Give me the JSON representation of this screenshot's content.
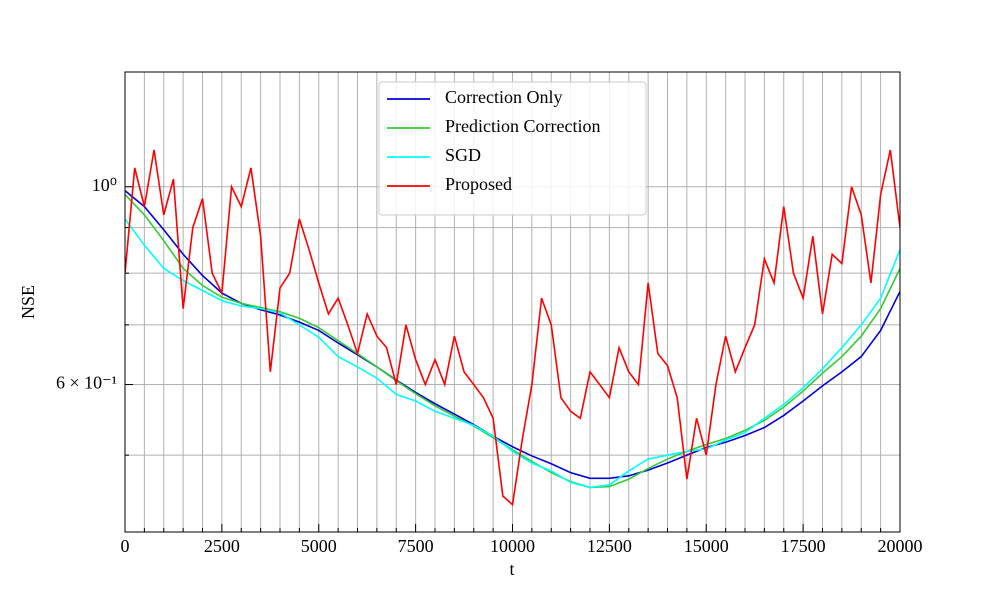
{
  "chart_data": {
    "type": "line",
    "xlabel": "t",
    "ylabel": "NSE",
    "log_y": true,
    "grid": true,
    "legend": "upper center",
    "xlim": [
      0,
      20000
    ],
    "ylim": [
      0.41,
      1.345
    ],
    "xticks": [
      0,
      2500,
      5000,
      7500,
      10000,
      12500,
      15000,
      17500,
      20000
    ],
    "xminorticks": [
      500,
      1000,
      1500,
      2000,
      3000,
      3500,
      4000,
      4500,
      5500,
      6000,
      6500,
      7000,
      8000,
      8500,
      9000,
      9500,
      10500,
      11000,
      11500,
      12000,
      13000,
      13500,
      14000,
      14500,
      15500,
      16000,
      16500,
      17000,
      18000,
      18500,
      19000,
      19500
    ],
    "yticks": [
      {
        "value": 0.6,
        "label": "6 × 10⁻¹"
      },
      {
        "value": 1,
        "label": "10⁰"
      }
    ],
    "yminorticks": [
      0.5,
      0.7,
      0.8,
      0.9
    ],
    "series": [
      {
        "name": "Correction Only",
        "color": "#0000dd",
        "x": [
          0,
          500,
          1000,
          1500,
          2000,
          2500,
          3000,
          3500,
          4000,
          4500,
          5000,
          5500,
          6000,
          6500,
          7000,
          7500,
          8000,
          8500,
          9000,
          9500,
          10000,
          10500,
          11000,
          11500,
          12000,
          12500,
          13000,
          13500,
          14000,
          14500,
          15000,
          15500,
          16000,
          16500,
          17000,
          17500,
          18000,
          18500,
          19000,
          19500,
          20000
        ],
        "values": [
          0.99,
          0.95,
          0.895,
          0.84,
          0.795,
          0.76,
          0.74,
          0.728,
          0.718,
          0.705,
          0.69,
          0.668,
          0.648,
          0.628,
          0.607,
          0.588,
          0.571,
          0.556,
          0.541,
          0.525,
          0.511,
          0.499,
          0.489,
          0.478,
          0.471,
          0.471,
          0.474,
          0.481,
          0.49,
          0.5,
          0.51,
          0.517,
          0.526,
          0.537,
          0.554,
          0.575,
          0.598,
          0.62,
          0.645,
          0.69,
          0.763
        ]
      },
      {
        "name": "Prediction Correction",
        "color": "#33cc33",
        "x": [
          0,
          500,
          1000,
          1500,
          2000,
          2500,
          3000,
          3500,
          4000,
          4500,
          5000,
          5500,
          6000,
          6500,
          7000,
          7500,
          8000,
          8500,
          9000,
          9500,
          10000,
          10500,
          11000,
          11500,
          12000,
          12500,
          13000,
          13500,
          14000,
          14500,
          15000,
          15500,
          16000,
          16500,
          17000,
          17500,
          18000,
          18500,
          19000,
          19500,
          20000
        ],
        "values": [
          0.98,
          0.93,
          0.87,
          0.81,
          0.775,
          0.752,
          0.74,
          0.732,
          0.724,
          0.712,
          0.695,
          0.672,
          0.65,
          0.628,
          0.606,
          0.586,
          0.568,
          0.553,
          0.539,
          0.523,
          0.507,
          0.492,
          0.478,
          0.467,
          0.46,
          0.461,
          0.47,
          0.483,
          0.495,
          0.505,
          0.514,
          0.522,
          0.533,
          0.547,
          0.566,
          0.59,
          0.618,
          0.645,
          0.68,
          0.73,
          0.81
        ]
      },
      {
        "name": "SGD",
        "color": "#00ffff",
        "x": [
          0,
          500,
          1000,
          1500,
          2000,
          2500,
          3000,
          3500,
          4000,
          4500,
          5000,
          5500,
          6000,
          6500,
          7000,
          7500,
          8000,
          8500,
          9000,
          9500,
          10000,
          10500,
          11000,
          11500,
          12000,
          12500,
          13000,
          13500,
          14000,
          14500,
          15000,
          15500,
          16000,
          16500,
          17000,
          17500,
          18000,
          18500,
          19000,
          19500,
          20000
        ],
        "values": [
          0.92,
          0.86,
          0.81,
          0.785,
          0.765,
          0.745,
          0.735,
          0.73,
          0.722,
          0.7,
          0.678,
          0.645,
          0.628,
          0.61,
          0.585,
          0.575,
          0.56,
          0.55,
          0.54,
          0.525,
          0.505,
          0.49,
          0.48,
          0.466,
          0.46,
          0.463,
          0.48,
          0.495,
          0.5,
          0.505,
          0.508,
          0.52,
          0.53,
          0.55,
          0.57,
          0.595,
          0.625,
          0.66,
          0.7,
          0.75,
          0.85
        ]
      },
      {
        "name": "Proposed",
        "color": "#ff0000",
        "x": [
          0,
          250,
          500,
          750,
          1000,
          1250,
          1500,
          1750,
          2000,
          2250,
          2500,
          2750,
          3000,
          3250,
          3500,
          3750,
          4000,
          4250,
          4500,
          4750,
          5000,
          5250,
          5500,
          5750,
          6000,
          6250,
          6500,
          6750,
          7000,
          7250,
          7500,
          7750,
          8000,
          8250,
          8500,
          8750,
          9000,
          9250,
          9500,
          9750,
          10000,
          10250,
          10500,
          10750,
          11000,
          11250,
          11500,
          11750,
          12000,
          12250,
          12500,
          12750,
          13000,
          13250,
          13500,
          13750,
          14000,
          14250,
          14500,
          14750,
          15000,
          15250,
          15500,
          15750,
          16000,
          16250,
          16500,
          16750,
          17000,
          17250,
          17500,
          17750,
          18000,
          18250,
          18500,
          18750,
          19000,
          19250,
          19500,
          19750,
          20000
        ],
        "values": [
          0.8,
          1.05,
          0.95,
          1.1,
          0.93,
          1.02,
          0.73,
          0.9,
          0.97,
          0.8,
          0.76,
          1.0,
          0.95,
          1.05,
          0.88,
          0.62,
          0.77,
          0.8,
          0.92,
          0.85,
          0.78,
          0.72,
          0.75,
          0.7,
          0.65,
          0.72,
          0.68,
          0.66,
          0.6,
          0.7,
          0.64,
          0.6,
          0.64,
          0.6,
          0.68,
          0.62,
          0.6,
          0.58,
          0.55,
          0.45,
          0.44,
          0.52,
          0.6,
          0.75,
          0.7,
          0.58,
          0.56,
          0.55,
          0.62,
          0.6,
          0.58,
          0.66,
          0.62,
          0.6,
          0.78,
          0.65,
          0.63,
          0.58,
          0.47,
          0.55,
          0.5,
          0.6,
          0.68,
          0.62,
          0.66,
          0.7,
          0.83,
          0.78,
          0.95,
          0.8,
          0.75,
          0.88,
          0.72,
          0.84,
          0.82,
          1.0,
          0.93,
          0.78,
          0.98,
          1.1,
          0.9
        ]
      }
    ]
  }
}
